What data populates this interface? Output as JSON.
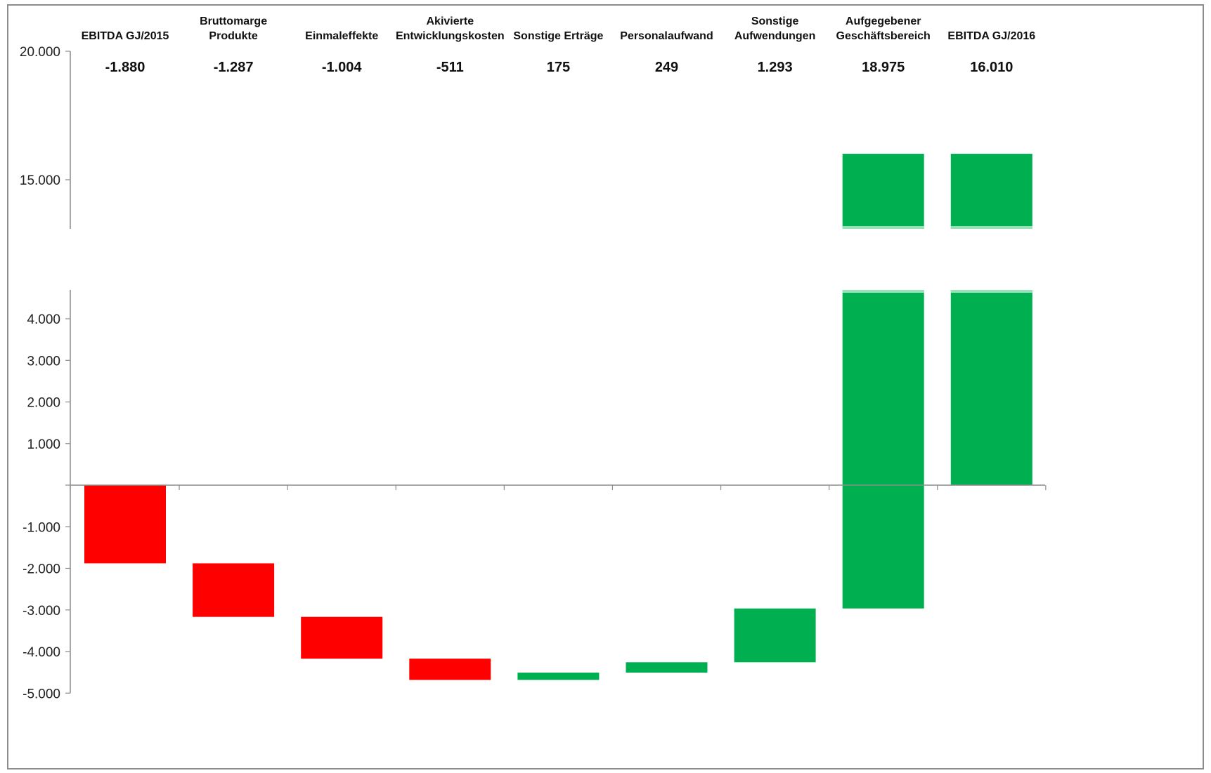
{
  "chart_data": {
    "type": "bar",
    "subtype": "waterfall",
    "axis_break": {
      "lower_max": 5000,
      "upper_min": 13000
    },
    "title": "",
    "xlabel": "",
    "ylabel": "",
    "grid": false,
    "legend": "none",
    "ylim": [
      -5000,
      20000
    ],
    "y_ticks": [
      {
        "value": 20000,
        "label": "20.000"
      },
      {
        "value": 15000,
        "label": "15.000"
      },
      {
        "value": 4000,
        "label": "4.000"
      },
      {
        "value": 3000,
        "label": "3.000"
      },
      {
        "value": 2000,
        "label": "2.000"
      },
      {
        "value": 1000,
        "label": "1.000"
      },
      {
        "value": -1000,
        "label": "-1.000"
      },
      {
        "value": -2000,
        "label": "-2.000"
      },
      {
        "value": -3000,
        "label": "-3.000"
      },
      {
        "value": -4000,
        "label": "-4.000"
      },
      {
        "value": -5000,
        "label": "-5.000"
      }
    ],
    "categories": [
      [
        "EBITDA GJ/2015"
      ],
      [
        "Bruttomarge",
        "Produkte"
      ],
      [
        "Einmaleffekte"
      ],
      [
        "Akivierte",
        "Entwicklungskosten"
      ],
      [
        "Sonstige Erträge"
      ],
      [
        "Personalaufwand"
      ],
      [
        "Sonstige",
        "Aufwendungen"
      ],
      [
        "Aufgegebener",
        "Geschäftsbereich"
      ],
      [
        "EBITDA GJ/2016"
      ]
    ],
    "values": [
      -1880,
      -1287,
      -1004,
      -511,
      175,
      249,
      1293,
      18975,
      16010
    ],
    "value_labels": [
      "-1.880",
      "-1.287",
      "-1.004",
      "-511",
      "175",
      "249",
      "1.293",
      "18.975",
      "16.010"
    ],
    "bars": [
      {
        "start": 0,
        "end": -1880,
        "color": "#ff0000"
      },
      {
        "start": -1880,
        "end": -3167,
        "color": "#ff0000"
      },
      {
        "start": -3167,
        "end": -4171,
        "color": "#ff0000"
      },
      {
        "start": -4171,
        "end": -4682,
        "color": "#ff0000"
      },
      {
        "start": -4682,
        "end": -4507,
        "color": "#00b050"
      },
      {
        "start": -4507,
        "end": -4258,
        "color": "#00b050"
      },
      {
        "start": -4258,
        "end": -2965,
        "color": "#00b050"
      },
      {
        "start": -2965,
        "end": 16010,
        "color": "#00b050"
      },
      {
        "start": 0,
        "end": 16010,
        "color": "#00b050"
      }
    ],
    "colors": {
      "negative": "#ff0000",
      "positive": "#00b050",
      "axis": "#8c8c8c"
    }
  }
}
